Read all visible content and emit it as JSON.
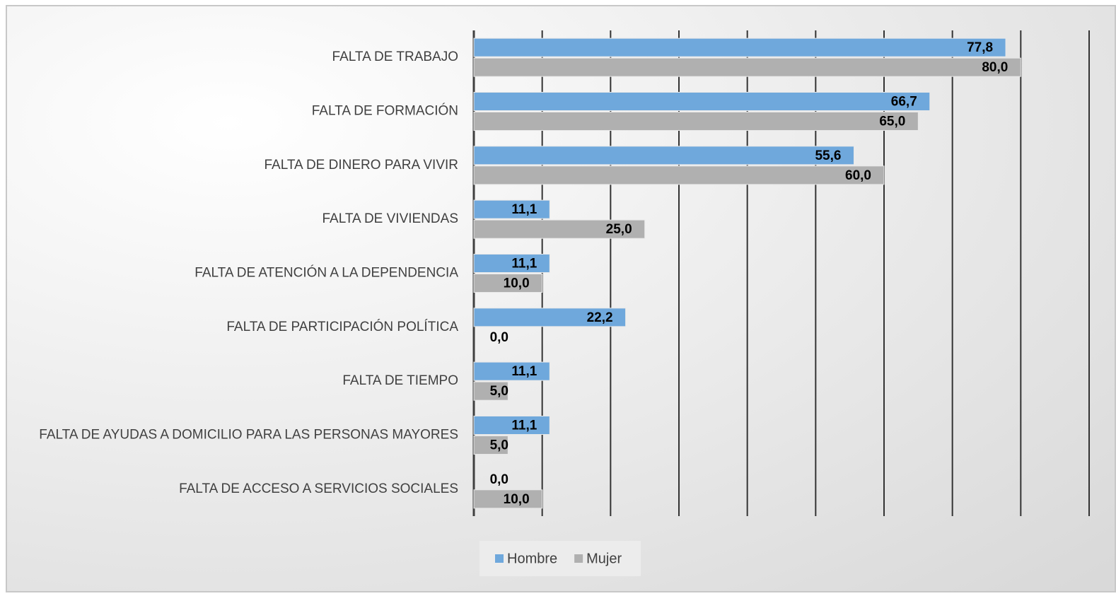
{
  "chart_data": {
    "type": "hbar",
    "categories": [
      "FALTA DE TRABAJO",
      "FALTA DE FORMACIÓN",
      "FALTA DE DINERO PARA VIVIR",
      "FALTA DE VIVIENDAS",
      "FALTA DE ATENCIÓN A LA DEPENDENCIA",
      "FALTA DE PARTICIPACIÓN POLÍTICA",
      "FALTA DE TIEMPO",
      "FALTA DE AYUDAS A DOMICILIO PARA LAS PERSONAS MAYORES",
      "FALTA DE ACCESO A SERVICIOS SOCIALES"
    ],
    "series": [
      {
        "name": "Hombre",
        "color": "#6fa8dc",
        "values": [
          77.8,
          66.7,
          55.6,
          11.1,
          11.1,
          22.2,
          11.1,
          11.1,
          0.0
        ],
        "value_labels": [
          "77,8",
          "66,7",
          "55,6",
          "11,1",
          "11,1",
          "22,2",
          "11,1",
          "11,1",
          "0,0"
        ]
      },
      {
        "name": "Mujer",
        "color": "#b0b0b0",
        "values": [
          80.0,
          65.0,
          60.0,
          25.0,
          10.0,
          0.0,
          5.0,
          5.0,
          10.0
        ],
        "value_labels": [
          "80,0",
          "65,0",
          "60,0",
          "25,0",
          "10,0",
          "0,0",
          "5,0",
          "5,0",
          "10,0"
        ]
      }
    ],
    "xlim": [
      0,
      90
    ],
    "xticks": [
      0,
      10,
      20,
      30,
      40,
      50,
      60,
      70,
      80,
      90
    ],
    "grid": true,
    "legend": "bottom"
  }
}
